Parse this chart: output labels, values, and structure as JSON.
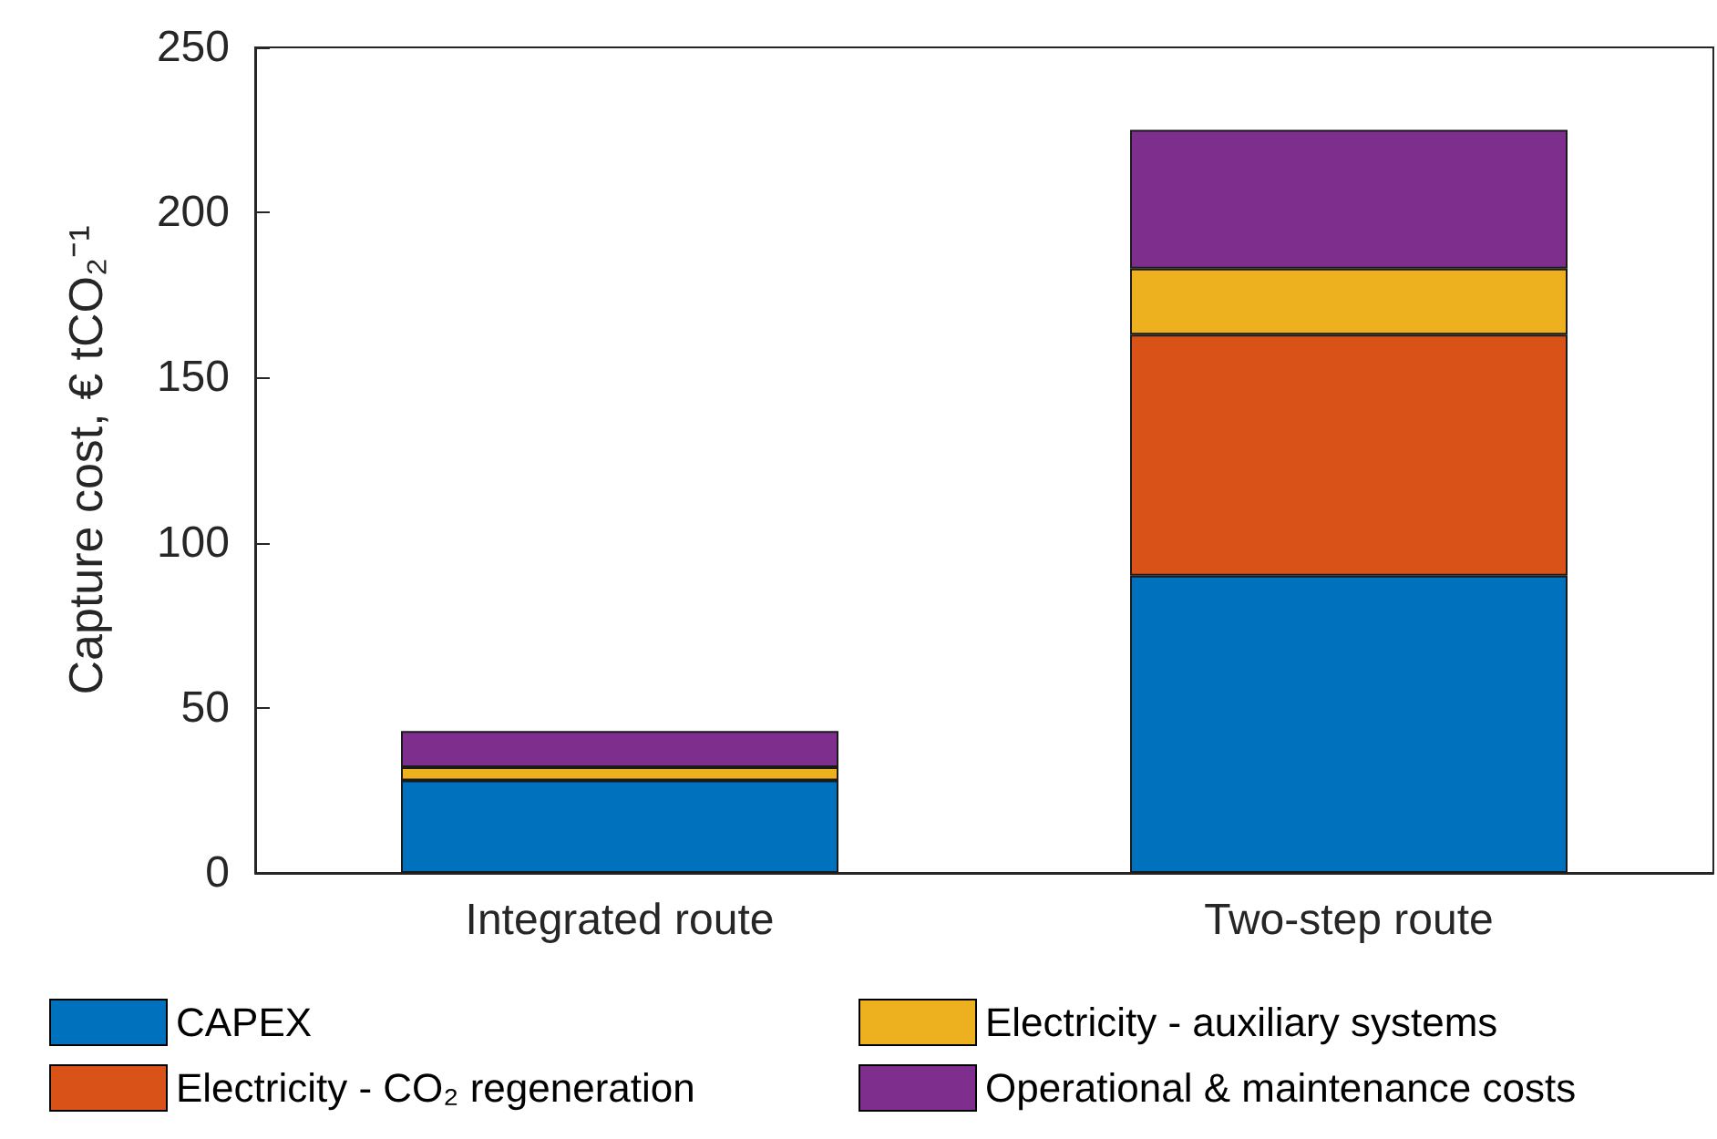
{
  "chart_data": {
    "type": "bar",
    "stacked": true,
    "ylabel": "Capture cost, € tCO₂⁻¹",
    "categories": [
      "Integrated route",
      "Two-step route"
    ],
    "series": [
      {
        "name": "CAPEX",
        "color": "#0072bd",
        "values": [
          28,
          90
        ]
      },
      {
        "name": "Electricity - CO₂ regeneration",
        "color": "#d95319",
        "values": [
          0,
          73
        ]
      },
      {
        "name": "Electricity - auxiliary systems",
        "color": "#edb120",
        "values": [
          4,
          20
        ]
      },
      {
        "name": "Operational & maintenance costs",
        "color": "#7e2f8e",
        "values": [
          11,
          42
        ]
      }
    ],
    "ylim": [
      0,
      250
    ],
    "yticks": [
      0,
      50,
      100,
      150,
      200,
      250
    ],
    "grid": false,
    "legend": "bottom"
  }
}
